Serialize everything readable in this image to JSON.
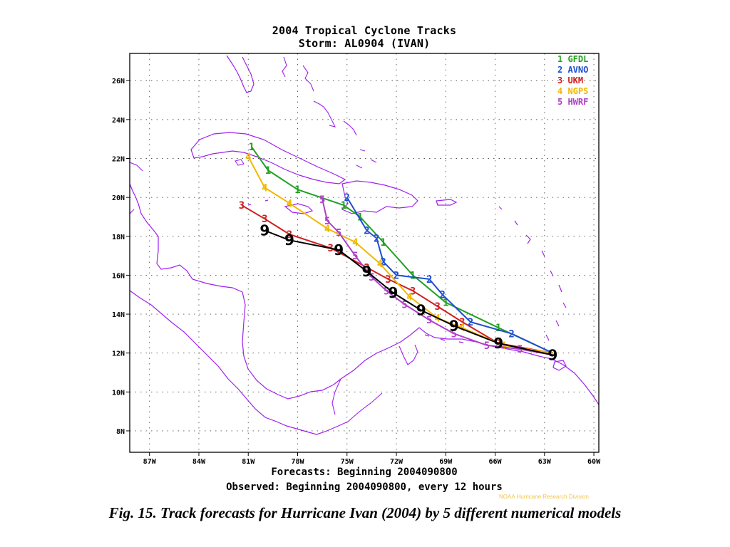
{
  "title": {
    "line1": "2004 Tropical Cyclone Tracks",
    "line2": "Storm: AL0904 (IVAN)"
  },
  "footer": {
    "forecasts": "Forecasts: Beginning 2004090800",
    "observed": "Observed: Beginning 2004090800, every 12 hours"
  },
  "credit_text": "NOAA Hurricane Research Division",
  "caption": "Fig. 15. Track forecasts for Hurricane Ivan (2004) by 5 different numerical models",
  "map": {
    "lon_ticks": [
      {
        "value": -87,
        "label": "87W"
      },
      {
        "value": -84,
        "label": "84W"
      },
      {
        "value": -81,
        "label": "81W"
      },
      {
        "value": -78,
        "label": "78W"
      },
      {
        "value": -75,
        "label": "75W"
      },
      {
        "value": -72,
        "label": "72W"
      },
      {
        "value": -69,
        "label": "69W"
      },
      {
        "value": -66,
        "label": "66W"
      },
      {
        "value": -63,
        "label": "63W"
      },
      {
        "value": -60,
        "label": "60W"
      }
    ],
    "lat_ticks": [
      {
        "value": 8,
        "label": "8N"
      },
      {
        "value": 10,
        "label": "10N"
      },
      {
        "value": 12,
        "label": "12N"
      },
      {
        "value": 14,
        "label": "14N"
      },
      {
        "value": 16,
        "label": "16N"
      },
      {
        "value": 18,
        "label": "18N"
      },
      {
        "value": 20,
        "label": "20N"
      },
      {
        "value": 22,
        "label": "22N"
      },
      {
        "value": 24,
        "label": "24N"
      },
      {
        "value": 26,
        "label": "26N"
      }
    ],
    "lon_range": [
      -88.2,
      -59.7
    ],
    "lat_range": [
      6.9,
      27.4
    ],
    "grid": true,
    "coastline_color": "#a020f0",
    "legend_placement": "top-right"
  },
  "tracks": [
    {
      "id": "1",
      "name": "GFDL",
      "color": "#22a022",
      "points": [
        [
          -62.5,
          12.0
        ],
        [
          -65.8,
          13.3
        ],
        [
          -69.0,
          14.6
        ],
        [
          -71.0,
          16.0
        ],
        [
          -72.8,
          17.7
        ],
        [
          -74.2,
          19.0
        ],
        [
          -75.2,
          19.6
        ],
        [
          -78.0,
          20.4
        ],
        [
          -79.8,
          21.4
        ],
        [
          -80.8,
          22.6
        ]
      ]
    },
    {
      "id": "2",
      "name": "AVNO",
      "color": "#1f4fd0",
      "points": [
        [
          -62.5,
          12.0
        ],
        [
          -65.0,
          13.0
        ],
        [
          -67.5,
          13.6
        ],
        [
          -69.2,
          15.0
        ],
        [
          -70.0,
          15.8
        ],
        [
          -72.0,
          16.0
        ],
        [
          -72.8,
          16.7
        ],
        [
          -73.2,
          17.9
        ],
        [
          -73.8,
          18.3
        ],
        [
          -75.0,
          20.0
        ]
      ]
    },
    {
      "id": "3",
      "name": "UKM",
      "color": "#d02020",
      "points": [
        [
          -62.5,
          12.0
        ],
        [
          -65.8,
          12.5
        ],
        [
          -68.0,
          13.6
        ],
        [
          -69.5,
          14.4
        ],
        [
          -71.0,
          15.2
        ],
        [
          -72.5,
          15.8
        ],
        [
          -73.8,
          16.4
        ],
        [
          -76.0,
          17.4
        ],
        [
          -78.5,
          18.1
        ],
        [
          -80.0,
          18.9
        ],
        [
          -81.4,
          19.6
        ]
      ]
    },
    {
      "id": "4",
      "name": "NGPS",
      "color": "#f0b800",
      "points": [
        [
          -62.5,
          12.0
        ],
        [
          -65.5,
          12.4
        ],
        [
          -68.0,
          13.3
        ],
        [
          -69.5,
          13.8
        ],
        [
          -71.2,
          14.9
        ],
        [
          -73.0,
          16.6
        ],
        [
          -74.5,
          17.7
        ],
        [
          -76.2,
          18.4
        ],
        [
          -78.5,
          19.7
        ],
        [
          -80.0,
          20.5
        ],
        [
          -81.0,
          22.1
        ]
      ]
    },
    {
      "id": "5",
      "name": "HWRF",
      "color": "#b040c8",
      "points": [
        [
          -62.5,
          11.9
        ],
        [
          -64.5,
          12.2
        ],
        [
          -66.5,
          12.4
        ],
        [
          -68.5,
          13.0
        ],
        [
          -70.0,
          13.7
        ],
        [
          -71.5,
          14.5
        ],
        [
          -72.6,
          15.2
        ],
        [
          -73.5,
          15.9
        ],
        [
          -74.5,
          17.0
        ],
        [
          -75.5,
          18.2
        ],
        [
          -76.2,
          18.8
        ],
        [
          -76.5,
          19.9
        ]
      ]
    }
  ],
  "observed_track": {
    "color": "#000000",
    "points": [
      [
        -62.5,
        11.9
      ],
      [
        -65.8,
        12.5
      ],
      [
        -68.5,
        13.4
      ],
      [
        -70.5,
        14.2
      ],
      [
        -72.2,
        15.1
      ],
      [
        -73.8,
        16.2
      ],
      [
        -75.5,
        17.3
      ],
      [
        -78.5,
        17.8
      ],
      [
        -80.0,
        18.3
      ]
    ]
  }
}
